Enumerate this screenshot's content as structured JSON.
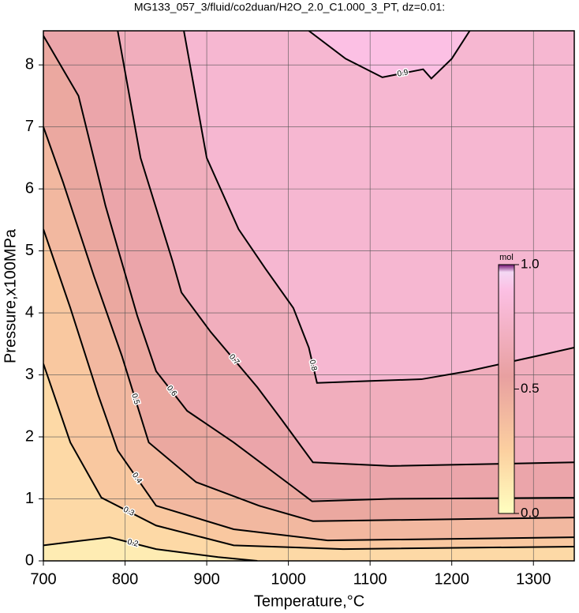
{
  "chart_data": {
    "type": "contour",
    "title": "MG133_057_3/fluid/co2duan/H2O_2.0_C1.000_3_PT, dz=0.01:",
    "x_label": "Temperature,°C",
    "y_label": "Pressure,x100MPa",
    "xlim": [
      700,
      1350
    ],
    "ylim": [
      0,
      8.55
    ],
    "xticks": [
      700,
      800,
      900,
      1000,
      1100,
      1200,
      1300
    ],
    "yticks": [
      0,
      1,
      2,
      3,
      4,
      5,
      6,
      7,
      8
    ],
    "grid": true,
    "colormap": [
      [
        0,
        "#ffffc0"
      ],
      [
        0.25,
        "#fcd0a0"
      ],
      [
        0.55,
        "#e8a0a0"
      ],
      [
        0.9,
        "#fcc0e4"
      ],
      [
        0.97,
        "#f4d8f4"
      ],
      [
        1,
        "#701070"
      ]
    ],
    "colorbar": {
      "label": "mol",
      "lim": [
        0,
        1
      ],
      "ticks": [
        {
          "value": 0,
          "label": "0.0"
        },
        {
          "value": 0.5,
          "label": "0.5"
        },
        {
          "value": 1,
          "label": "1.0"
        }
      ]
    },
    "series": [
      {
        "name": "0.2",
        "level": 0.2,
        "x": [
          700,
          743,
          781,
          838,
          914,
          962
        ],
        "y": [
          0.25,
          0.32,
          0.38,
          0.19,
          0.06,
          0
        ]
      },
      {
        "name": "0.3",
        "level": 0.3,
        "x": [
          700,
          733,
          771,
          838,
          933,
          1067,
          1350
        ],
        "y": [
          3.18,
          1.91,
          1.02,
          0.57,
          0.25,
          0.19,
          0.23
        ]
      },
      {
        "name": "0.4",
        "level": 0.4,
        "x": [
          700,
          733,
          767,
          791,
          838,
          933,
          1048,
          1350
        ],
        "y": [
          5.35,
          4.08,
          2.68,
          1.78,
          0.89,
          0.51,
          0.33,
          0.38
        ]
      },
      {
        "name": "0.5",
        "level": 0.5,
        "x": [
          700,
          724,
          762,
          796,
          829,
          887,
          964,
          1030,
          1350
        ],
        "y": [
          7.0,
          6.11,
          4.59,
          3.31,
          1.91,
          1.27,
          0.89,
          0.64,
          0.7
        ]
      },
      {
        "name": "0.6",
        "level": 0.6,
        "x": [
          700,
          743,
          776,
          815,
          838,
          876,
          933,
          1010,
          1029,
          1125,
          1350
        ],
        "y": [
          8.47,
          7.5,
          5.73,
          3.95,
          3.06,
          2.42,
          1.91,
          1.15,
          0.96,
          1.0,
          1.02
        ]
      },
      {
        "name": "0.7",
        "level": 0.7,
        "x": [
          791,
          819,
          858,
          869,
          905,
          962,
          991,
          1030,
          1125,
          1350
        ],
        "y": [
          8.55,
          6.5,
          4.84,
          4.33,
          3.69,
          2.8,
          2.29,
          1.59,
          1.53,
          1.59
        ]
      },
      {
        "name": "0.8",
        "level": 0.8,
        "x": [
          872,
          900,
          939,
          972,
          1006,
          1025,
          1035,
          1097,
          1163,
          1220,
          1306,
          1350
        ],
        "y": [
          8.55,
          6.5,
          5.35,
          4.71,
          4.08,
          3.44,
          2.87,
          2.9,
          2.93,
          3.06,
          3.31,
          3.44
        ]
      },
      {
        "name": "0.9",
        "level": 0.9,
        "x": [
          1025,
          1070,
          1115,
          1165,
          1175,
          1200,
          1222
        ],
        "y": [
          8.55,
          8.1,
          7.8,
          7.93,
          7.78,
          8.1,
          8.55
        ]
      }
    ]
  }
}
